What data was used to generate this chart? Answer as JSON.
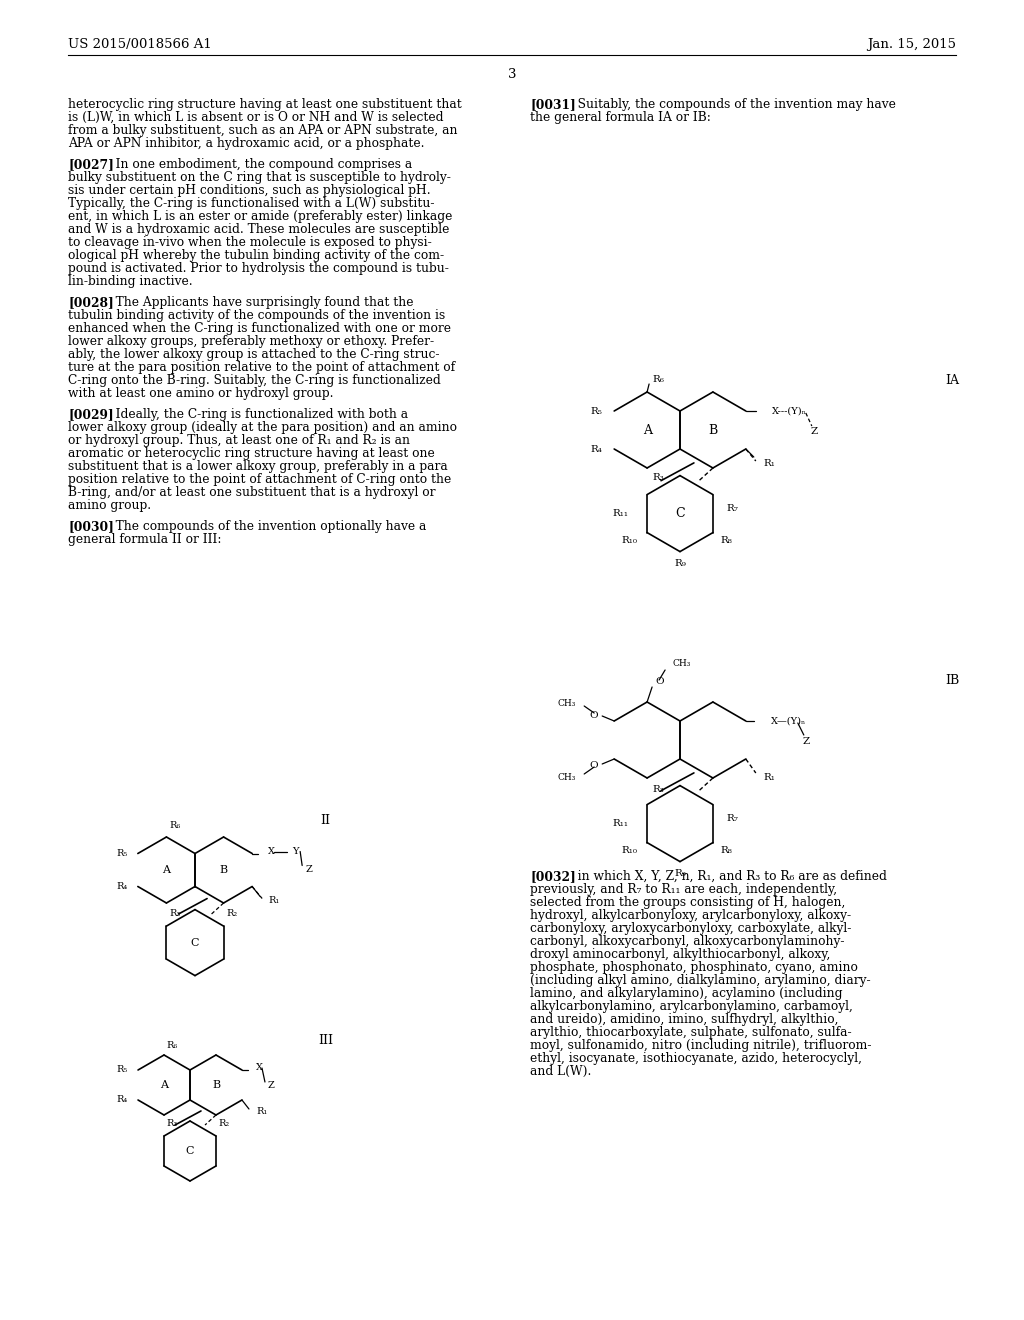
{
  "bg_color": "#ffffff",
  "header_left": "US 2015/0018566 A1",
  "header_right": "Jan. 15, 2015",
  "page_number": "3",
  "left_paragraphs": [
    {
      "tag": "",
      "lines": [
        "heterocyclic ring structure having at least one substituent that",
        "is (L)W, in which L is absent or is O or NH and W is selected",
        "from a bulky substituent, such as an APA or APN substrate, an",
        "APA or APN inhibitor, a hydroxamic acid, or a phosphate."
      ]
    },
    {
      "tag": "[0027]",
      "lines": [
        "In one embodiment, the compound comprises a",
        "bulky substituent on the C ring that is susceptible to hydroly-",
        "sis under certain pH conditions, such as physiological pH.",
        "Typically, the C-ring is functionalised with a L(W) substitu-",
        "ent, in which L is an ester or amide (preferably ester) linkage",
        "and W is a hydroxamic acid. These molecules are susceptible",
        "to cleavage in-vivo when the molecule is exposed to physi-",
        "ological pH whereby the tubulin binding activity of the com-",
        "pound is activated. Prior to hydrolysis the compound is tubu-",
        "lin-binding inactive."
      ]
    },
    {
      "tag": "[0028]",
      "lines": [
        "The Applicants have surprisingly found that the",
        "tubulin binding activity of the compounds of the invention is",
        "enhanced when the C-ring is functionalized with one or more",
        "lower alkoxy groups, preferably methoxy or ethoxy. Prefer-",
        "ably, the lower alkoxy group is attached to the C-ring struc-",
        "ture at the para position relative to the point of attachment of",
        "C-ring onto the B-ring. Suitably, the C-ring is functionalized",
        "with at least one amino or hydroxyl group."
      ]
    },
    {
      "tag": "[0029]",
      "lines": [
        "Ideally, the C-ring is functionalized with both a",
        "lower alkoxy group (ideally at the para position) and an amino",
        "or hydroxyl group. Thus, at least one of R₁ and R₂ is an",
        "aromatic or heterocyclic ring structure having at least one",
        "substituent that is a lower alkoxy group, preferably in a para",
        "position relative to the point of attachment of C-ring onto the",
        "B-ring, and/or at least one substituent that is a hydroxyl or",
        "amino group."
      ]
    },
    {
      "tag": "[0030]",
      "lines": [
        "The compounds of the invention optionally have a",
        "general formula II or III:"
      ]
    }
  ],
  "right_top_paragraphs": [
    {
      "tag": "[0031]",
      "lines": [
        "Suitably, the compounds of the invention may have",
        "the general formula IA or IB:"
      ]
    }
  ],
  "right_bottom_paragraphs": [
    {
      "tag": "[0032]",
      "lines": [
        "in which X, Y, Z, n, R₁, and R₃ to R₆ are as defined",
        "previously, and R₇ to R₁₁ are each, independently,",
        "selected from the groups consisting of H, halogen,",
        "hydroxyl, alkylcarbonyloxy, arylcarbonyloxy, alkoxy-",
        "carbonyloxy, aryloxycarbonyloxy, carboxylate, alkyl-",
        "carbonyl, alkoxycarbonyl, alkoxycarbonylaminohy-",
        "droxyl aminocarbonyl, alkylthiocarbonyl, alkoxy,",
        "phosphate, phosphonato, phosphinato, cyano, amino",
        "(including alkyl amino, dialkylamino, arylamino, diary-",
        "lamino, and alkylarylamino), acylamino (including",
        "alkylcarbonylamino, arylcarbonylamino, carbamoyl,",
        "and ureido), amidino, imino, sulfhydryl, alkylthio,",
        "arylthio, thiocarboxylate, sulphate, sulfonato, sulfa-",
        "moyl, sulfonamido, nitro (including nitrile), trifluorom-",
        "ethyl, isocyanate, isothiocyanate, azido, heterocyclyl,",
        "and L(W)."
      ]
    }
  ]
}
